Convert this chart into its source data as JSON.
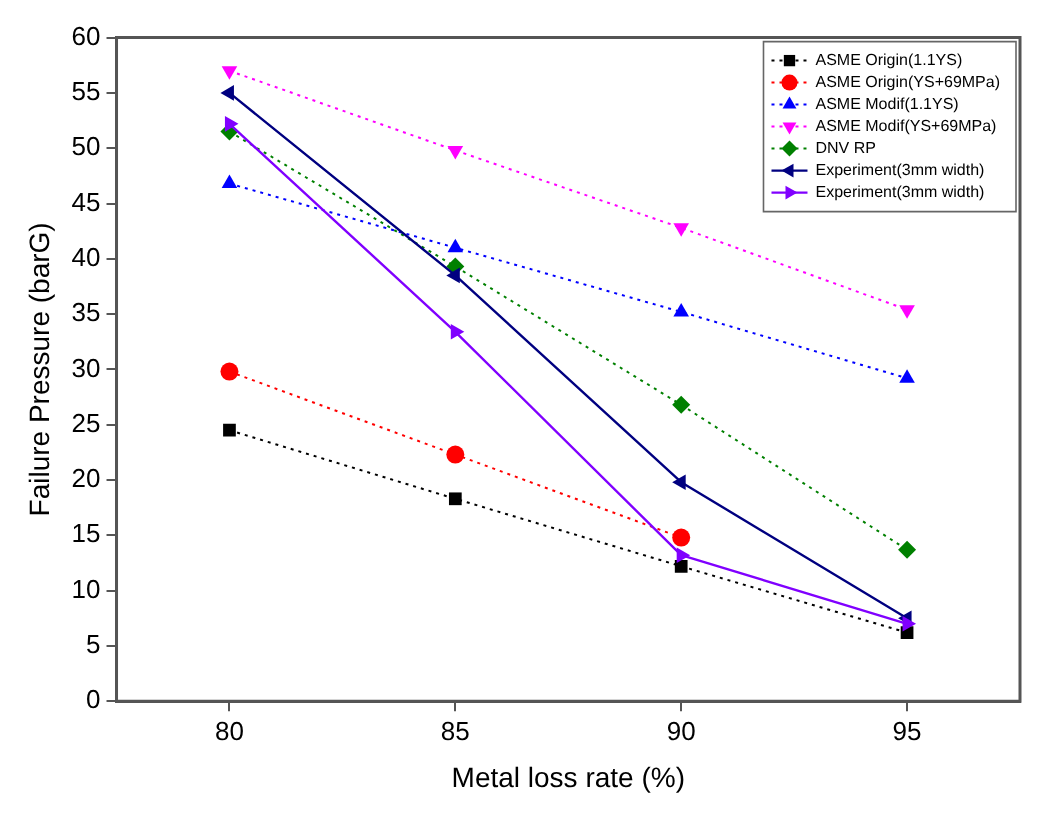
{
  "chart_data": {
    "type": "line",
    "xlabel": "Metal loss rate (%)",
    "ylabel": "Failure Pressure (barG)",
    "x": [
      80,
      85,
      90,
      95
    ],
    "xlim": [
      77.5,
      97.5
    ],
    "xticks": [
      80,
      85,
      90,
      95
    ],
    "ylim": [
      0,
      60
    ],
    "yticks": [
      0,
      5,
      10,
      15,
      20,
      25,
      30,
      35,
      40,
      45,
      50,
      55,
      60
    ],
    "grid": false,
    "legend": "top right",
    "series": [
      {
        "name": "ASME Origin(1.1YS)",
        "color": "#000000",
        "marker": "square",
        "line_style": "dotted",
        "values": [
          24.5,
          18.3,
          12.2,
          6.2
        ]
      },
      {
        "name": "ASME Origin(YS+69MPa)",
        "color": "#ff0000",
        "marker": "circle",
        "line_style": "dotted",
        "values": [
          29.8,
          22.3,
          14.8,
          null
        ]
      },
      {
        "name": "ASME Modif(1.1YS)",
        "color": "#0000ff",
        "marker": "triangle",
        "line_style": "dotted",
        "values": [
          46.8,
          41,
          35.2,
          29.2
        ]
      },
      {
        "name": "ASME Modif(YS+69MPa)",
        "color": "#ff00ff",
        "marker": "triangle-down",
        "line_style": "dotted",
        "values": [
          57,
          49.8,
          42.8,
          35.4
        ]
      },
      {
        "name": "DNV RP",
        "color": "#008000",
        "marker": "diamond",
        "line_style": "dotted",
        "values": [
          51.5,
          39.3,
          26.8,
          13.7
        ]
      },
      {
        "name": "Experiment(3mm width)",
        "color": "#000080",
        "marker": "triangle-left",
        "line_style": "solid",
        "values": [
          55,
          38.5,
          19.8,
          7.5
        ]
      },
      {
        "name": "Experiment(3mm width)",
        "color": "#8000ff",
        "marker": "triangle-right",
        "line_style": "solid",
        "values": [
          52.2,
          33.4,
          13.2,
          7.0
        ]
      }
    ]
  }
}
